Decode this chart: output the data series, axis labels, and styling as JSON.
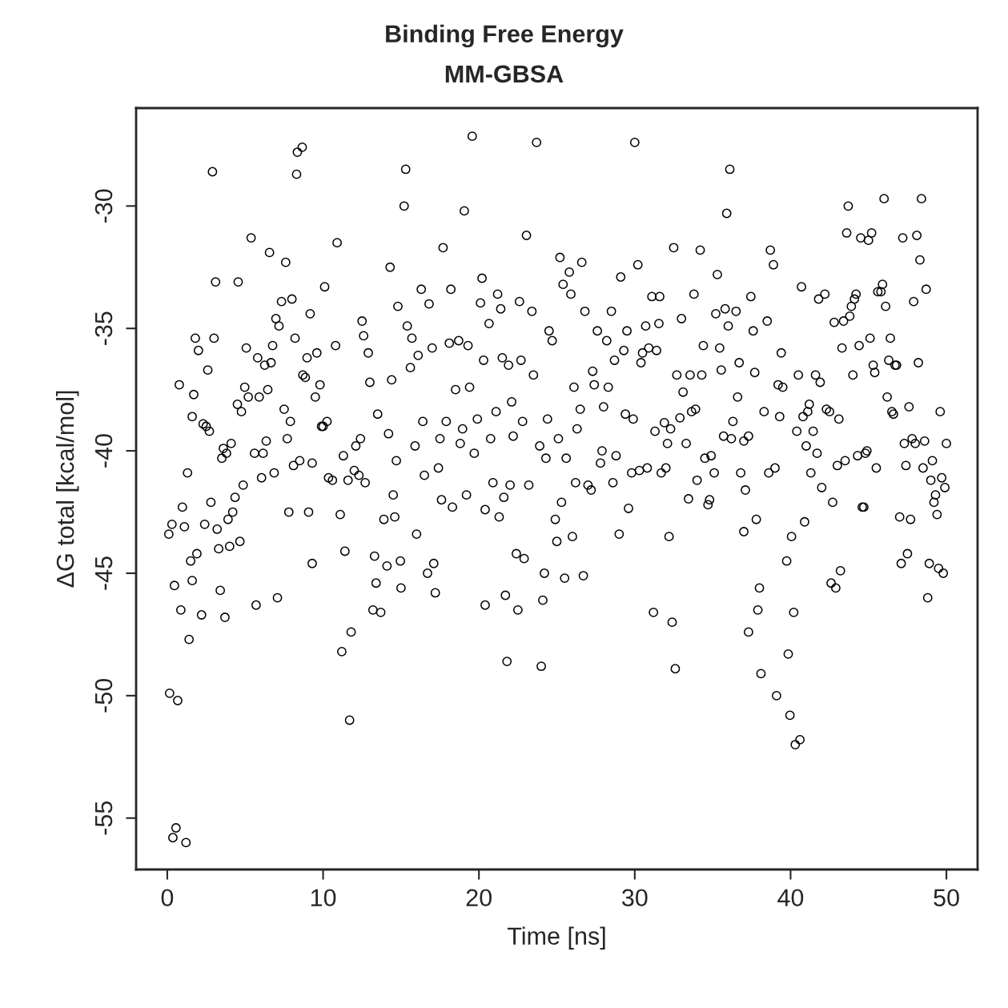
{
  "chart_data": {
    "type": "scatter",
    "title": "Binding Free Energy",
    "subtitle": "MM-GBSA",
    "xlabel": "Time [ns]",
    "ylabel": "ΔG total [kcal/mol]",
    "xlim": [
      -2,
      52
    ],
    "ylim": [
      -57.1,
      -26.0
    ],
    "xticks": [
      0,
      10,
      20,
      30,
      40,
      50
    ],
    "yticks": [
      -55,
      -50,
      -45,
      -40,
      -35,
      -30
    ],
    "grid": false,
    "marker": "circle",
    "series": [
      {
        "color": "#000000",
        "x": [
          0.1,
          0.15,
          0.3,
          0.36,
          0.56,
          0.46,
          0.67,
          0.77,
          0.87,
          0.97,
          1.1,
          1.2,
          1.3,
          1.4,
          1.5,
          1.6,
          1.6,
          1.7,
          1.8,
          1.9,
          2.0,
          2.2,
          2.3,
          2.4,
          2.5,
          2.6,
          2.7,
          2.8,
          2.9,
          3.0,
          3.1,
          3.2,
          3.3,
          3.4,
          3.5,
          3.6,
          3.7,
          3.8,
          3.9,
          4.0,
          4.1,
          4.2,
          4.35,
          4.5,
          4.55,
          4.66,
          4.76,
          4.87,
          4.97,
          5.07,
          5.2,
          5.38,
          5.6,
          5.7,
          5.8,
          5.9,
          6.05,
          6.15,
          6.25,
          6.35,
          6.45,
          6.56,
          6.66,
          6.76,
          6.86,
          6.97,
          7.07,
          7.17,
          7.33,
          7.5,
          7.6,
          7.7,
          7.8,
          7.9,
          8.0,
          8.1,
          8.2,
          8.3,
          8.35,
          8.5,
          8.66,
          8.7,
          8.86,
          8.97,
          9.07,
          9.17,
          9.3,
          9.3,
          9.5,
          9.6,
          9.8,
          9.9,
          10.0,
          10.1,
          10.25,
          10.35,
          10.6,
          10.8,
          10.9,
          11.1,
          11.2,
          11.3,
          11.4,
          11.6,
          11.7,
          11.8,
          12.0,
          12.1,
          12.3,
          12.4,
          12.5,
          12.6,
          12.7,
          12.9,
          13.0,
          13.2,
          13.3,
          13.4,
          13.5,
          13.7,
          13.9,
          14.1,
          14.2,
          14.3,
          14.4,
          14.5,
          14.6,
          14.7,
          14.8,
          14.96,
          15.0,
          15.2,
          15.3,
          15.4,
          15.6,
          15.7,
          15.9,
          16.0,
          16.1,
          16.3,
          16.4,
          16.5,
          16.7,
          16.8,
          17.0,
          17.1,
          17.2,
          17.4,
          17.5,
          17.6,
          17.7,
          17.9,
          18.1,
          18.2,
          18.3,
          18.5,
          18.7,
          18.8,
          18.95,
          19.06,
          19.2,
          19.3,
          19.4,
          19.57,
          19.7,
          19.9,
          20.1,
          20.2,
          20.3,
          20.4,
          20.4,
          20.65,
          20.75,
          20.9,
          21.1,
          21.2,
          21.3,
          21.4,
          21.5,
          21.6,
          21.7,
          21.8,
          21.9,
          22.0,
          22.1,
          22.2,
          22.4,
          22.5,
          22.6,
          22.7,
          22.8,
          22.9,
          23.05,
          23.2,
          23.4,
          23.5,
          23.7,
          23.9,
          24.0,
          24.1,
          24.2,
          24.3,
          24.4,
          24.5,
          24.7,
          24.9,
          25.0,
          25.1,
          25.2,
          25.3,
          25.4,
          25.5,
          25.6,
          25.8,
          25.9,
          26.0,
          26.1,
          26.2,
          26.3,
          26.5,
          26.6,
          26.7,
          26.8,
          27.0,
          27.2,
          27.3,
          27.4,
          27.6,
          27.8,
          27.9,
          28.0,
          28.2,
          28.3,
          28.5,
          28.6,
          28.7,
          28.8,
          29.0,
          29.1,
          29.3,
          29.4,
          29.5,
          29.6,
          29.8,
          29.9,
          30.0,
          30.2,
          30.3,
          30.4,
          30.5,
          30.7,
          30.8,
          30.9,
          31.1,
          31.2,
          31.3,
          31.4,
          31.55,
          31.6,
          31.7,
          31.9,
          32.0,
          32.1,
          32.2,
          32.3,
          32.4,
          32.5,
          32.6,
          32.7,
          32.9,
          33.0,
          33.1,
          33.3,
          33.45,
          33.55,
          33.65,
          33.8,
          33.9,
          34.0,
          34.2,
          34.3,
          34.4,
          34.5,
          34.7,
          34.8,
          34.9,
          35.1,
          35.2,
          35.3,
          35.45,
          35.55,
          35.7,
          35.8,
          35.9,
          36.0,
          36.1,
          36.2,
          36.3,
          36.5,
          36.6,
          36.7,
          36.8,
          37.0,
          37.0,
          37.1,
          37.3,
          37.3,
          37.45,
          37.6,
          37.7,
          37.8,
          37.9,
          38.0,
          38.1,
          38.3,
          38.5,
          38.6,
          38.7,
          38.9,
          39.0,
          39.1,
          39.2,
          39.3,
          39.4,
          39.5,
          39.75,
          39.85,
          39.96,
          40.06,
          40.2,
          40.3,
          40.4,
          40.5,
          40.6,
          40.7,
          40.8,
          40.9,
          41.0,
          41.1,
          41.2,
          41.3,
          41.45,
          41.6,
          41.7,
          41.8,
          41.9,
          42.0,
          42.2,
          42.3,
          42.5,
          42.6,
          42.7,
          42.8,
          42.9,
          43.0,
          43.1,
          43.2,
          43.3,
          43.4,
          43.5,
          43.6,
          43.7,
          43.8,
          43.9,
          44.0,
          44.1,
          44.2,
          44.3,
          44.4,
          44.5,
          44.6,
          44.7,
          44.8,
          44.9,
          45.0,
          45.1,
          45.2,
          45.3,
          45.4,
          45.5,
          45.6,
          45.8,
          45.9,
          46.0,
          46.1,
          46.2,
          46.3,
          46.4,
          46.5,
          46.6,
          46.7,
          46.8,
          47.0,
          47.1,
          47.2,
          47.3,
          47.4,
          47.5,
          47.6,
          47.7,
          47.8,
          47.9,
          48.0,
          48.1,
          48.2,
          48.3,
          48.4,
          48.5,
          48.6,
          48.7,
          48.8,
          48.9,
          49.0,
          49.1,
          49.2,
          49.3,
          49.4,
          49.5,
          49.6,
          49.7,
          49.8,
          49.9,
          50.0
        ],
        "values": [
          -43.4,
          -49.9,
          -43.0,
          -55.8,
          -55.4,
          -45.5,
          -50.2,
          -37.3,
          -46.5,
          -42.3,
          -43.1,
          -56.0,
          -40.9,
          -47.7,
          -44.5,
          -45.3,
          -38.6,
          -37.7,
          -35.4,
          -44.2,
          -35.9,
          -46.7,
          -38.9,
          -43.0,
          -39.0,
          -36.7,
          -39.2,
          -42.1,
          -28.6,
          -35.4,
          -33.1,
          -43.2,
          -44.0,
          -45.7,
          -40.3,
          -39.9,
          -46.8,
          -40.1,
          -42.8,
          -43.9,
          -39.7,
          -42.5,
          -41.9,
          -38.1,
          -33.1,
          -43.7,
          -38.4,
          -41.4,
          -37.4,
          -35.8,
          -37.8,
          -31.3,
          -40.1,
          -46.3,
          -36.2,
          -37.8,
          -41.1,
          -40.1,
          -36.5,
          -39.6,
          -37.5,
          -31.9,
          -36.4,
          -35.7,
          -40.9,
          -34.6,
          -46.0,
          -34.9,
          -33.9,
          -38.3,
          -32.3,
          -39.5,
          -42.5,
          -38.8,
          -33.8,
          -40.6,
          -35.4,
          -28.7,
          -27.8,
          -40.4,
          -27.6,
          -36.9,
          -37.0,
          -36.2,
          -42.5,
          -34.4,
          -40.5,
          -44.6,
          -37.8,
          -36.0,
          -37.3,
          -39.0,
          -39.0,
          -33.3,
          -38.8,
          -41.1,
          -41.2,
          -35.7,
          -31.5,
          -42.6,
          -48.2,
          -40.2,
          -44.1,
          -41.2,
          -51.0,
          -47.4,
          -40.8,
          -39.8,
          -41.0,
          -39.5,
          -34.7,
          -35.3,
          -41.3,
          -36.0,
          -37.2,
          -46.5,
          -44.3,
          -45.4,
          -38.5,
          -46.6,
          -42.8,
          -44.7,
          -39.3,
          -32.5,
          -37.1,
          -41.8,
          -42.7,
          -40.4,
          -34.1,
          -44.5,
          -45.6,
          -30.0,
          -28.5,
          -34.9,
          -36.6,
          -35.4,
          -39.8,
          -43.4,
          -36.1,
          -33.4,
          -38.8,
          -41.0,
          -45.0,
          -34.0,
          -35.8,
          -44.6,
          -45.8,
          -40.7,
          -39.5,
          -42.0,
          -31.7,
          -38.8,
          -35.6,
          -33.4,
          -42.3,
          -37.5,
          -35.5,
          -39.7,
          -39.1,
          -30.2,
          -41.8,
          -35.7,
          -37.4,
          -27.15,
          -40.1,
          -38.7,
          -33.96,
          -32.95,
          -36.3,
          -46.3,
          -42.4,
          -34.8,
          -39.5,
          -41.3,
          -38.4,
          -33.6,
          -42.7,
          -34.2,
          -36.2,
          -41.9,
          -45.9,
          -48.6,
          -36.5,
          -41.4,
          -38.0,
          -39.4,
          -44.2,
          -46.5,
          -33.9,
          -36.3,
          -38.8,
          -44.4,
          -31.2,
          -41.4,
          -34.3,
          -36.9,
          -27.4,
          -39.8,
          -48.8,
          -46.1,
          -45.0,
          -40.3,
          -38.7,
          -35.1,
          -35.5,
          -42.8,
          -43.7,
          -39.5,
          -32.1,
          -42.1,
          -33.2,
          -45.2,
          -40.3,
          -32.7,
          -33.6,
          -43.5,
          -37.4,
          -41.3,
          -39.1,
          -38.3,
          -32.3,
          -45.1,
          -34.3,
          -41.4,
          -41.6,
          -36.75,
          -37.3,
          -35.1,
          -40.5,
          -40.0,
          -38.2,
          -35.5,
          -37.4,
          -34.3,
          -41.3,
          -36.3,
          -40.2,
          -43.4,
          -32.9,
          -35.9,
          -38.5,
          -35.1,
          -42.35,
          -40.9,
          -38.7,
          -27.4,
          -32.4,
          -40.8,
          -36.4,
          -36.0,
          -34.9,
          -40.7,
          -35.8,
          -33.7,
          -46.6,
          -39.2,
          -35.9,
          -34.8,
          -33.7,
          -40.9,
          -38.85,
          -40.7,
          -39.7,
          -43.5,
          -39.1,
          -47.0,
          -31.7,
          -48.9,
          -36.9,
          -38.65,
          -34.6,
          -37.6,
          -39.7,
          -41.96,
          -36.9,
          -38.4,
          -33.6,
          -38.3,
          -41.2,
          -31.8,
          -36.9,
          -35.7,
          -40.3,
          -42.2,
          -42.0,
          -40.2,
          -40.9,
          -34.4,
          -32.8,
          -35.8,
          -36.7,
          -39.4,
          -34.2,
          -30.3,
          -34.9,
          -28.5,
          -39.5,
          -38.8,
          -34.3,
          -37.8,
          -36.4,
          -40.9,
          -39.6,
          -43.3,
          -41.6,
          -39.4,
          -47.4,
          -33.7,
          -35.1,
          -36.8,
          -42.8,
          -46.5,
          -45.6,
          -49.1,
          -38.4,
          -34.7,
          -40.9,
          -31.8,
          -32.4,
          -40.7,
          -50.0,
          -37.3,
          -38.6,
          -36.0,
          -37.4,
          -44.5,
          -48.3,
          -50.8,
          -43.5,
          -46.6,
          -52.0,
          -39.2,
          -36.9,
          -51.8,
          -33.3,
          -38.6,
          -42.9,
          -39.8,
          -38.4,
          -38.1,
          -40.9,
          -39.2,
          -36.9,
          -40.1,
          -33.8,
          -37.2,
          -41.5,
          -33.6,
          -38.3,
          -38.4,
          -45.4,
          -42.1,
          -34.75,
          -45.6,
          -40.6,
          -38.7,
          -44.9,
          -35.8,
          -34.7,
          -40.4,
          -31.1,
          -30.0,
          -34.5,
          -34.1,
          -36.9,
          -33.8,
          -33.6,
          -40.2,
          -35.7,
          -31.3,
          -42.3,
          -42.3,
          -40.1,
          -40.0,
          -31.4,
          -35.4,
          -31.1,
          -36.5,
          -36.8,
          -40.7,
          -33.5,
          -33.5,
          -33.2,
          -29.7,
          -34.1,
          -37.8,
          -36.3,
          -35.4,
          -38.4,
          -38.5,
          -36.5,
          -36.5,
          -42.7,
          -44.6,
          -31.3,
          -39.7,
          -40.6,
          -44.2,
          -38.2,
          -42.8,
          -39.5,
          -33.9,
          -39.7,
          -31.2,
          -36.4,
          -32.2,
          -29.7,
          -40.7,
          -39.6,
          -33.4,
          -46.0,
          -44.6,
          -41.2,
          -40.4,
          -42.1,
          -41.8,
          -42.6,
          -44.8,
          -38.4,
          -41.1,
          -45.0,
          -41.5,
          -39.7
        ]
      }
    ]
  }
}
